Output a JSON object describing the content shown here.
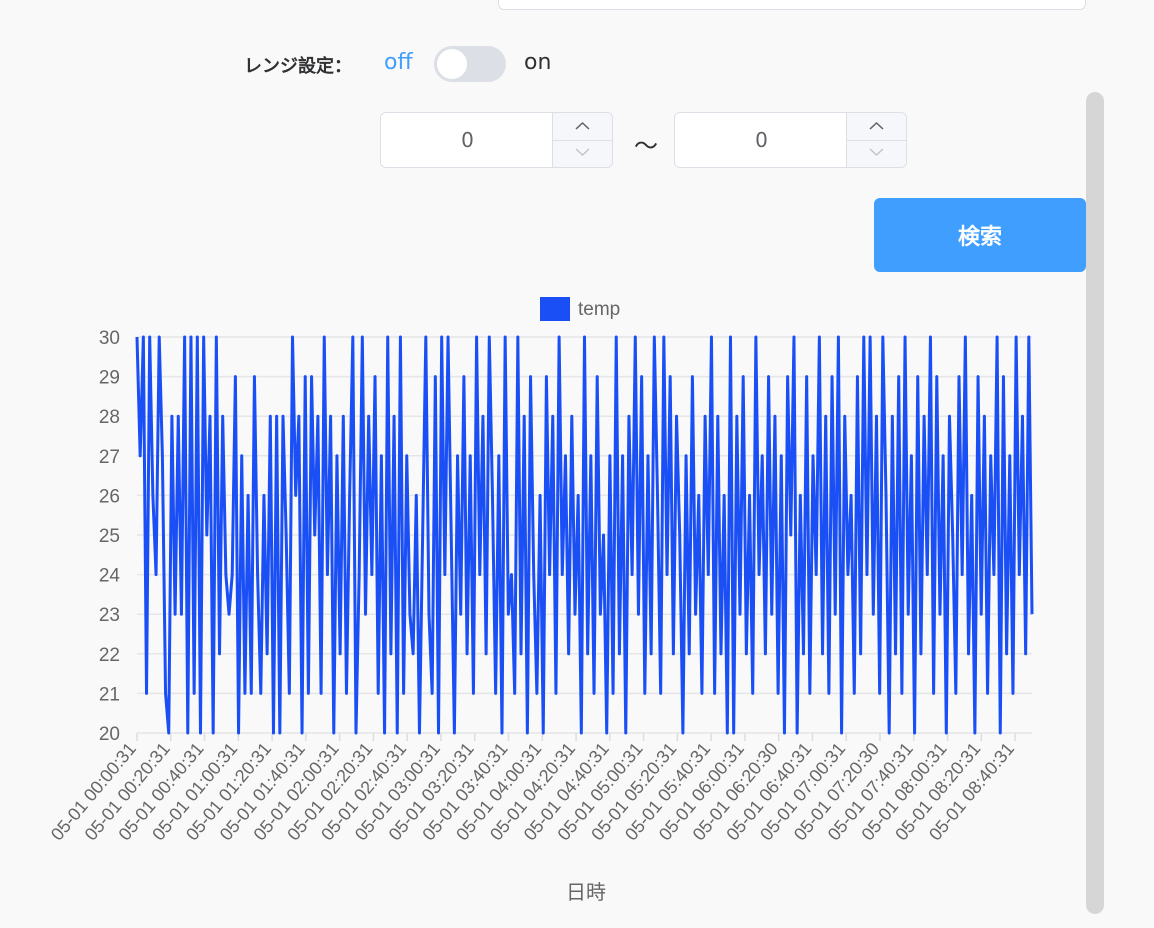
{
  "range": {
    "label": "レンジ設定：",
    "switch_off_label": "off",
    "switch_on_label": "on",
    "switch_state": "off",
    "min_value": "0",
    "max_value": "0",
    "separator": "～"
  },
  "search": {
    "label": "検索"
  },
  "colors": {
    "accent": "#409eff",
    "series": "#1a4ff5",
    "grid": "#e6e6e6"
  },
  "icons": [
    "chevron-up-icon",
    "chevron-down-icon"
  ],
  "chart_data": {
    "type": "line",
    "title": "",
    "xlabel": "日時",
    "ylabel": "",
    "ylim": [
      20,
      30
    ],
    "grid": true,
    "legend_position": "top-center",
    "y_ticks": [
      20,
      21,
      22,
      23,
      24,
      25,
      26,
      27,
      28,
      29,
      30
    ],
    "x_tick_labels": [
      "05-01 00:00:31",
      "05-01 00:20:31",
      "05-01 00:40:31",
      "05-01 01:00:31",
      "05-01 01:20:31",
      "05-01 01:40:31",
      "05-01 02:00:31",
      "05-01 02:20:31",
      "05-01 02:40:31",
      "05-01 03:00:31",
      "05-01 03:20:31",
      "05-01 03:40:31",
      "05-01 04:00:31",
      "05-01 04:20:31",
      "05-01 04:40:31",
      "05-01 05:00:31",
      "05-01 05:20:31",
      "05-01 05:40:31",
      "05-01 06:00:31",
      "05-01 06:20:30",
      "05-01 06:40:31",
      "05-01 07:00:31",
      "05-01 07:20:30",
      "05-01 07:40:31",
      "05-01 08:00:31",
      "05-01 08:20:31",
      "05-01 08:40:31"
    ],
    "series": [
      {
        "name": "temp",
        "values": [
          30,
          27,
          30,
          21,
          30,
          26,
          24,
          30,
          27,
          21,
          20,
          28,
          23,
          28,
          23,
          30,
          20,
          30,
          21,
          30,
          20,
          30,
          25,
          28,
          20,
          30,
          22,
          28,
          24,
          23,
          24,
          29,
          20,
          27,
          21,
          26,
          21,
          29,
          24,
          21,
          26,
          22,
          28,
          20,
          28,
          20,
          28,
          25,
          21,
          30,
          26,
          28,
          20,
          29,
          21,
          29,
          25,
          28,
          21,
          30,
          24,
          28,
          20,
          27,
          22,
          28,
          21,
          26,
          30,
          20,
          24,
          30,
          23,
          28,
          24,
          29,
          21,
          27,
          20,
          30,
          22,
          28,
          20,
          30,
          21,
          27,
          23,
          22,
          26,
          20,
          25,
          30,
          23,
          21,
          29,
          20,
          30,
          24,
          30,
          25,
          20,
          27,
          23,
          29,
          22,
          27,
          21,
          30,
          24,
          28,
          22,
          30,
          26,
          21,
          27,
          20,
          30,
          23,
          24,
          21,
          30,
          22,
          28,
          20,
          29,
          24,
          21,
          26,
          20,
          29,
          24,
          28,
          21,
          30,
          24,
          27,
          22,
          28,
          23,
          26,
          20,
          30,
          22,
          27,
          21,
          29,
          23,
          25,
          20,
          27,
          21,
          30,
          22,
          27,
          20,
          28,
          24,
          30,
          23,
          29,
          21,
          27,
          22,
          30,
          26,
          21,
          30,
          24,
          29,
          22,
          28,
          25,
          20,
          27,
          22,
          29,
          23,
          26,
          21,
          28,
          24,
          30,
          21,
          28,
          22,
          26,
          20,
          30,
          20,
          28,
          23,
          29,
          22,
          26,
          21,
          30,
          24,
          27,
          22,
          29,
          23,
          28,
          21,
          27,
          20,
          29,
          25,
          30,
          20,
          26,
          22,
          29,
          21,
          27,
          24,
          30,
          22,
          28,
          21,
          29,
          23,
          30,
          20,
          28,
          24,
          26,
          21,
          29,
          22,
          30,
          24,
          30,
          23,
          28,
          21,
          30,
          26,
          20,
          28,
          22,
          29,
          21,
          30,
          23,
          27,
          20,
          29,
          22,
          28,
          24,
          30,
          21,
          29,
          23,
          27,
          20,
          28,
          25,
          21,
          29,
          24,
          30,
          22,
          26,
          20,
          29,
          23,
          28,
          21,
          27,
          24,
          30,
          20,
          29,
          22,
          27,
          21,
          30,
          24,
          28,
          22,
          30,
          23
        ]
      }
    ]
  }
}
